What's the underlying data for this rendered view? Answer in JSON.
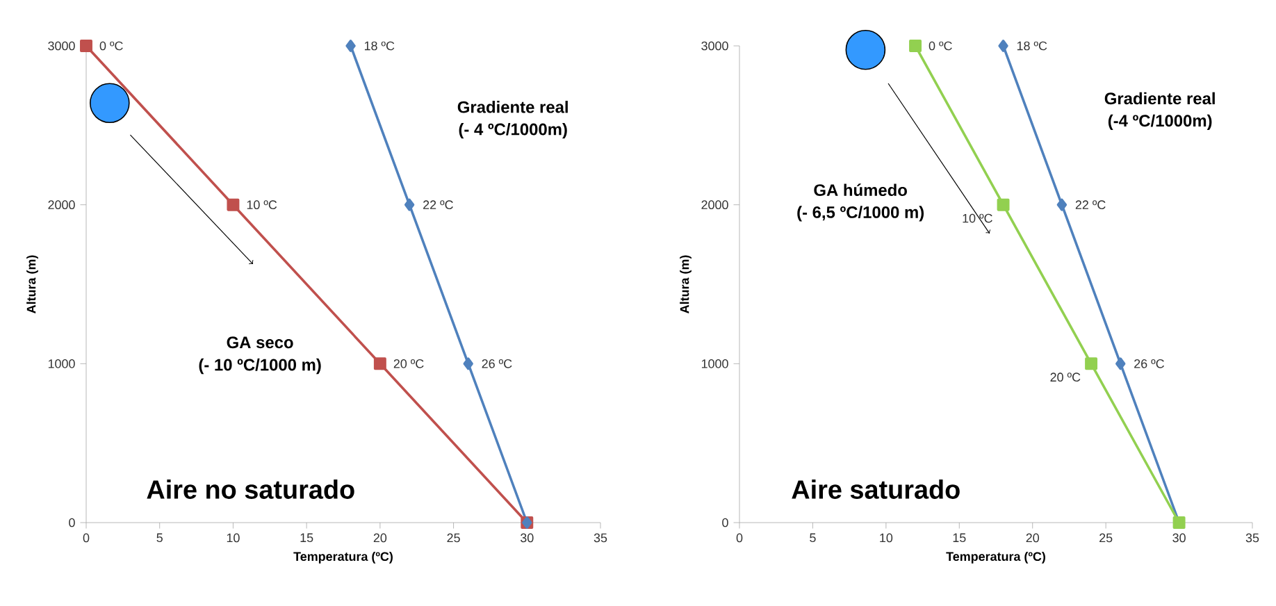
{
  "chart_data": [
    {
      "type": "line",
      "xlabel": "Temperatura (ºC)",
      "ylabel": "Altura (m)",
      "xlim": [
        0,
        35
      ],
      "ylim": [
        0,
        3000
      ],
      "xticks": [
        0,
        5,
        10,
        15,
        20,
        25,
        30,
        35
      ],
      "yticks": [
        0,
        1000,
        2000,
        3000
      ],
      "series": [
        {
          "color": "#c0504d",
          "marker": "square",
          "x": [
            0,
            10,
            20,
            30
          ],
          "values": [
            3000,
            2000,
            1000,
            0
          ]
        },
        {
          "color": "#4f81bd",
          "marker": "diamond",
          "x": [
            18,
            22,
            26,
            30
          ],
          "values": [
            3000,
            2000,
            1000,
            0
          ]
        }
      ],
      "annotations": [
        "Gradiente real",
        "(- 4 ºC/1000m)",
        "GA seco",
        "(- 10 ºC/1000 m)",
        "Aire no saturado",
        {
          "text": "0 ºC",
          "x": 0,
          "y": 3000
        },
        {
          "text": "10 ºC",
          "x": 10,
          "y": 2000
        },
        {
          "text": "20 ºC",
          "x": 20,
          "y": 1000
        },
        {
          "text": "18 ºC",
          "x": 18,
          "y": 3000
        },
        {
          "text": "22 ºC",
          "x": 22,
          "y": 2000
        },
        {
          "text": "26 ºC",
          "x": 26,
          "y": 1000
        }
      ]
    },
    {
      "type": "line",
      "xlabel": "Temperatura (ºC)",
      "ylabel": "Altura (m)",
      "xlim": [
        0,
        35
      ],
      "ylim": [
        0,
        3000
      ],
      "xticks": [
        0,
        5,
        10,
        15,
        20,
        25,
        30,
        35
      ],
      "yticks": [
        0,
        1000,
        2000,
        3000
      ],
      "series": [
        {
          "color": "#4f81bd",
          "marker": "diamond",
          "x": [
            18,
            22,
            26,
            30
          ],
          "values": [
            3000,
            2000,
            1000,
            0
          ]
        },
        {
          "color": "#92d050",
          "marker": "square",
          "x": [
            12,
            18,
            24,
            30
          ],
          "values": [
            3000,
            2000,
            1000,
            0
          ]
        }
      ],
      "annotations": [
        "Gradiente real",
        "(-4 ºC/1000m)",
        "GA húmedo",
        "(- 6,5 ºC/1000 m)",
        "Aire saturado",
        {
          "text": "0 ºC",
          "x": 12,
          "y": 3000
        },
        {
          "text": "10 ºC",
          "x": 18,
          "y": 2000
        },
        {
          "text": "20 ºC",
          "x": 24,
          "y": 1000
        },
        {
          "text": "18 ºC",
          "x": 18,
          "y": 3000
        },
        {
          "text": "22 ºC",
          "x": 22,
          "y": 2000
        },
        {
          "text": "26 ºC",
          "x": 26,
          "y": 1000
        }
      ]
    }
  ]
}
